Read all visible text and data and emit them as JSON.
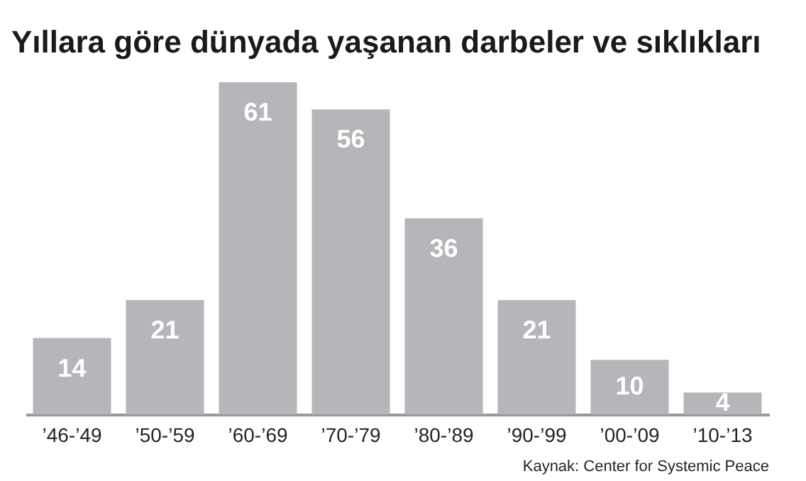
{
  "chart_data": {
    "type": "bar",
    "title": "Yıllara göre dünyada yaşanan darbeler ve sıklıkları",
    "categories": [
      "’46-’49",
      "’50-’59",
      "’60-’69",
      "’70-’79",
      "’80-’89",
      "’90-’99",
      "’00-’09",
      "’10-’13"
    ],
    "values": [
      14,
      21,
      61,
      56,
      36,
      21,
      10,
      4
    ],
    "color": "#b6b6ba",
    "data_labels": true,
    "annotations": [
      "Kaynak: Center for Systemic Peace"
    ]
  }
}
